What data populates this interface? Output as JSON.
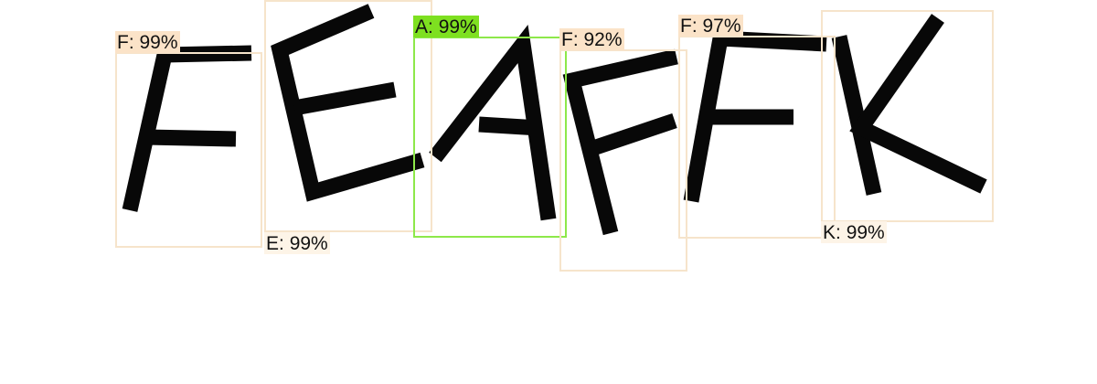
{
  "detections": [
    {
      "letter": "F",
      "score": "99%",
      "selected": false
    },
    {
      "letter": "E",
      "score": "99%",
      "selected": false
    },
    {
      "letter": "A",
      "score": "99%",
      "selected": true
    },
    {
      "letter": "F",
      "score": "92%",
      "selected": false
    },
    {
      "letter": "F",
      "score": "97%",
      "selected": false
    },
    {
      "letter": "K",
      "score": "99%",
      "selected": false
    }
  ],
  "colors": {
    "box": "#f6e4cb",
    "box_selected": "#8de84a",
    "label_background": "#fbe3c8",
    "label_background_selected": "#7ee020",
    "glyph": "#080808"
  }
}
